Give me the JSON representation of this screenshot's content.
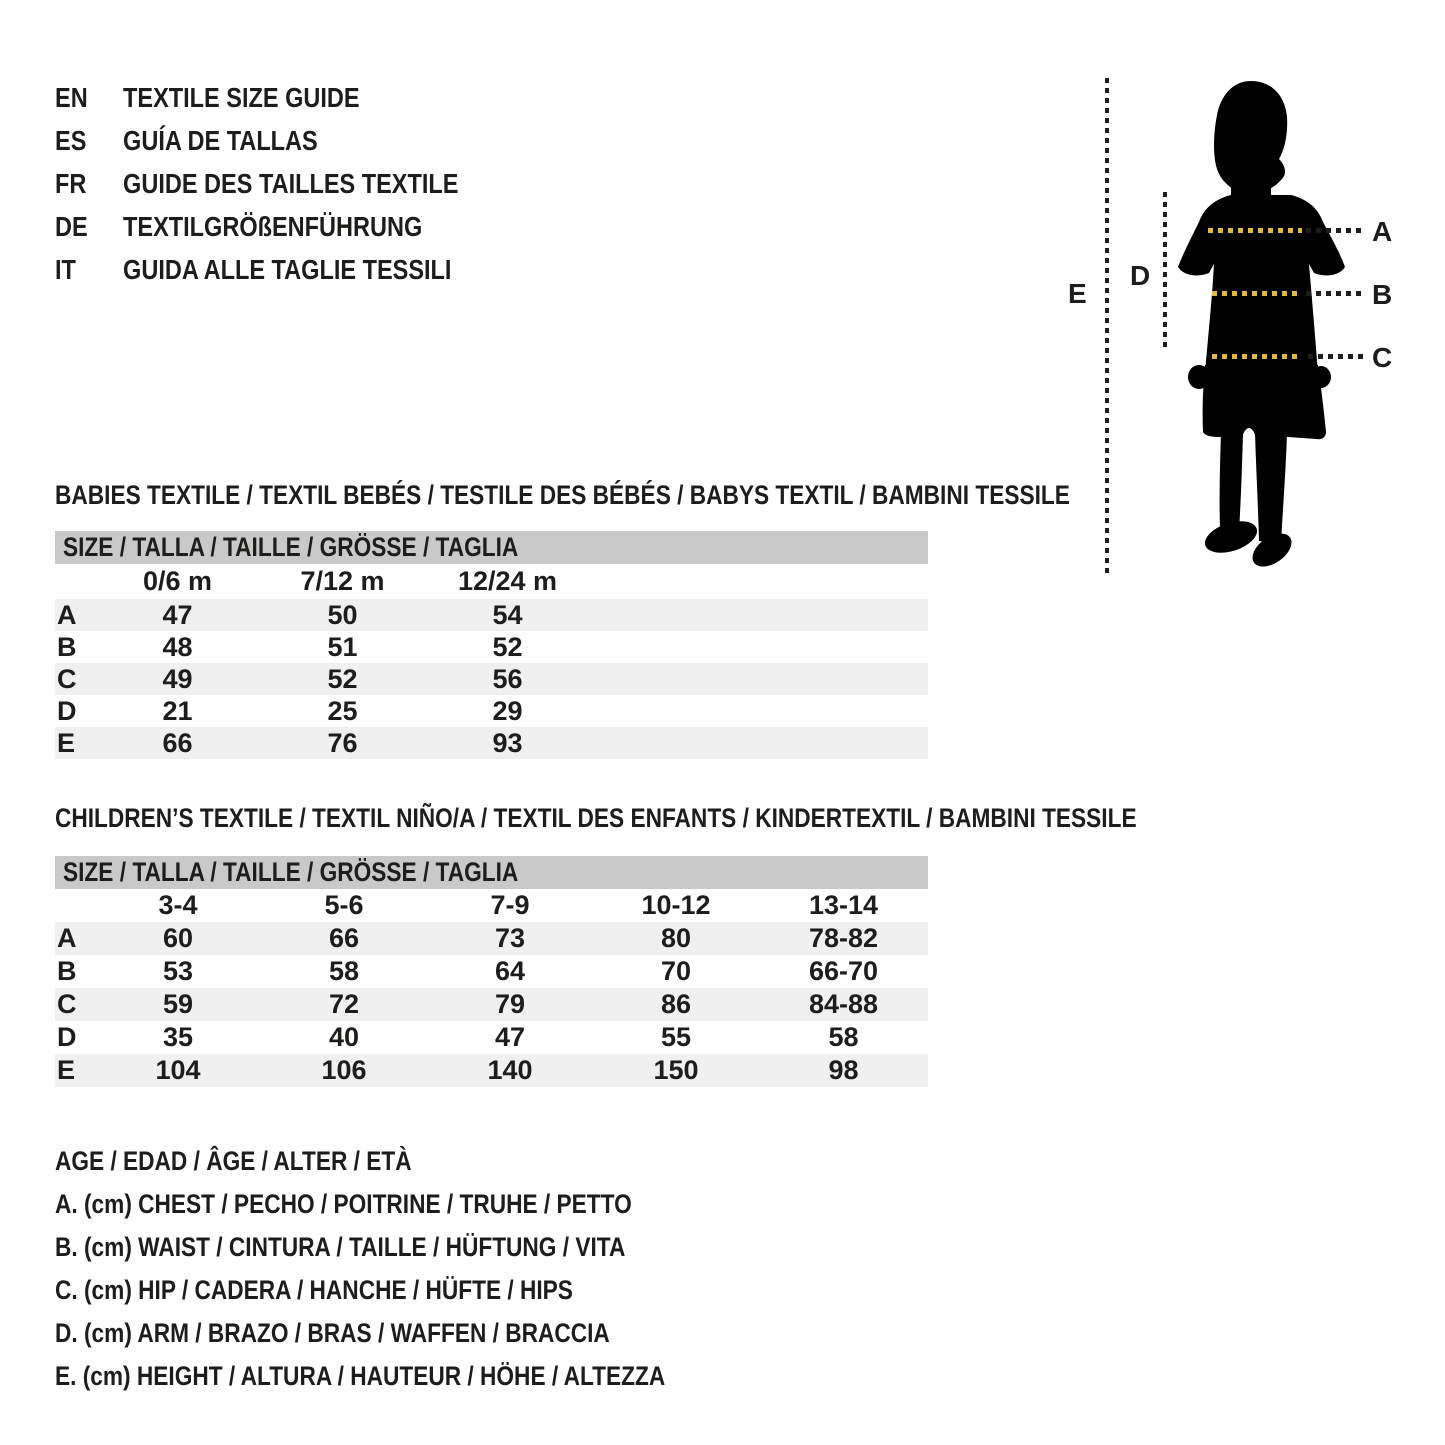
{
  "colors": {
    "text": "#1d1d1b",
    "header_bar": "#c9c9c9",
    "row_stripe": "#f0f0f0",
    "silhouette": "#000000",
    "measure_dots_yellow": "#e0ba3e"
  },
  "languages": [
    {
      "code": "EN",
      "label": "TEXTILE SIZE GUIDE"
    },
    {
      "code": "ES",
      "label": "GUÍA DE TALLAS"
    },
    {
      "code": "FR",
      "label": "GUIDE DES TAILLES TEXTILE"
    },
    {
      "code": "DE",
      "label": "TEXTILGRÖßENFÜHRUNG"
    },
    {
      "code": "IT",
      "label": "GUIDA ALLE TAGLIE TESSILI"
    }
  ],
  "figure": {
    "labels": {
      "A": "A",
      "B": "B",
      "C": "C",
      "D": "D",
      "E": "E"
    }
  },
  "babies": {
    "title": "BABIES TEXTILE / TEXTIL BEBÉS / TESTILE DES BÉBÉS / BABYS TEXTIL / BAMBINI TESSILE",
    "size_header": "SIZE / TALLA / TAILLE / GRÖSSE / TAGLIA",
    "columns": [
      "0/6 m",
      "7/12 m",
      "12/24 m"
    ],
    "rows": [
      {
        "label": "A",
        "values": [
          "47",
          "50",
          "54"
        ]
      },
      {
        "label": "B",
        "values": [
          "48",
          "51",
          "52"
        ]
      },
      {
        "label": "C",
        "values": [
          "49",
          "52",
          "56"
        ]
      },
      {
        "label": "D",
        "values": [
          "21",
          "25",
          "29"
        ]
      },
      {
        "label": "E",
        "values": [
          "66",
          "76",
          "93"
        ]
      }
    ]
  },
  "children": {
    "title": "CHILDREN’S TEXTILE / TEXTIL NIÑO/A / TEXTIL DES ENFANTS / KINDERTEXTIL / BAMBINI TESSILE",
    "size_header": "SIZE / TALLA / TAILLE / GRÖSSE / TAGLIA",
    "columns": [
      "3-4",
      "5-6",
      "7-9",
      "10-12",
      "13-14"
    ],
    "rows": [
      {
        "label": "A",
        "values": [
          "60",
          "66",
          "73",
          "80",
          "78-82"
        ]
      },
      {
        "label": "B",
        "values": [
          "53",
          "58",
          "64",
          "70",
          "66-70"
        ]
      },
      {
        "label": "C",
        "values": [
          "59",
          "72",
          "79",
          "86",
          "84-88"
        ]
      },
      {
        "label": "D",
        "values": [
          "35",
          "40",
          "47",
          "55",
          "58"
        ]
      },
      {
        "label": "E",
        "values": [
          "104",
          "106",
          "140",
          "150",
          "98"
        ]
      }
    ]
  },
  "legend": [
    "AGE / EDAD / ÂGE / ALTER / ETÀ",
    "A. (cm) CHEST / PECHO / POITRINE / TRUHE / PETTO",
    "B. (cm) WAIST / CINTURA / TAILLE / HÜFTUNG / VITA",
    "C. (cm) HIP / CADERA / HANCHE / HÜFTE / HIPS",
    "D. (cm) ARM / BRAZO / BRAS / WAFFEN / BRACCIA",
    "E. (cm) HEIGHT / ALTURA / HAUTEUR / HÖHE / ALTEZZA"
  ]
}
